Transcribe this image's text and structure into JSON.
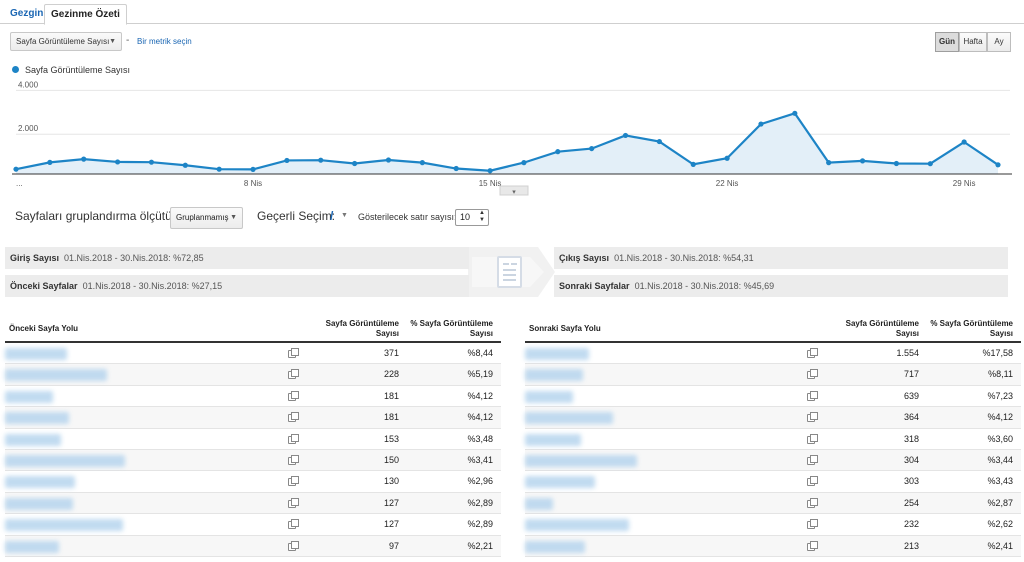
{
  "tabs": [
    {
      "label": "Gezgin"
    },
    {
      "label": "Gezinme Özeti"
    }
  ],
  "controls": {
    "metric_select": "Sayfa Görüntüleme Sayısı",
    "dash": "-",
    "add_metric": "Bir metrik seçin",
    "periods": [
      "Gün",
      "Hafta",
      "Ay"
    ],
    "selected_period": "Gün"
  },
  "legend": {
    "label": "Sayfa Görüntüleme Sayısı"
  },
  "colors": {
    "series": "#1d84c6",
    "fill": "#e3eff8",
    "link": "#1a66b3"
  },
  "chart_data": {
    "type": "area",
    "x": [
      "1 Nis",
      "2 Nis",
      "3 Nis",
      "4 Nis",
      "5 Nis",
      "6 Nis",
      "7 Nis",
      "8 Nis",
      "9 Nis",
      "10 Nis",
      "11 Nis",
      "12 Nis",
      "13 Nis",
      "14 Nis",
      "15 Nis",
      "16 Nis",
      "17 Nis",
      "18 Nis",
      "19 Nis",
      "20 Nis",
      "21 Nis",
      "22 Nis",
      "23 Nis",
      "24 Nis",
      "25 Nis",
      "26 Nis",
      "27 Nis",
      "28 Nis",
      "29 Nis",
      "30 Nis"
    ],
    "series": [
      {
        "name": "Sayfa Görüntüleme Sayısı",
        "values": [
          220,
          530,
          680,
          550,
          540,
          400,
          220,
          210,
          620,
          630,
          480,
          640,
          520,
          250,
          150,
          520,
          1020,
          1160,
          1760,
          1480,
          440,
          720,
          2280,
          2770,
          520,
          600,
          480,
          470,
          1460,
          420
        ]
      }
    ],
    "yticks": [
      "2.000",
      "4.000"
    ],
    "ylim": [
      0,
      4200
    ],
    "xtick_labels": [
      "...",
      "8 Nis",
      "15 Nis",
      "22 Nis",
      "29 Nis"
    ],
    "grid": true,
    "legend_position": "top-left"
  },
  "grouping": {
    "label": "Sayfaları gruplandırma ölçütü:",
    "select": "Gruplanmamış",
    "current_label": "Geçerli Seçim:",
    "current_value": "/",
    "rows_label": "Gösterilecek satır sayısı:",
    "rows_value": "10"
  },
  "flow": {
    "entry": {
      "label": "Giriş Sayısı",
      "detail": "01.Nis.2018 - 30.Nis.2018: %72,85"
    },
    "previous": {
      "label": "Önceki Sayfalar",
      "detail": "01.Nis.2018 - 30.Nis.2018: %27,15"
    },
    "exit": {
      "label": "Çıkış Sayısı",
      "detail": "01.Nis.2018 - 30.Nis.2018: %54,31"
    },
    "next": {
      "label": "Sonraki Sayfalar",
      "detail": "01.Nis.2018 - 30.Nis.2018: %45,69"
    }
  },
  "prev_table": {
    "headers": [
      "Önceki Sayfa Yolu",
      "Sayfa Görüntüleme Sayısı",
      "% Sayfa Görüntüleme Sayısı"
    ],
    "header_lines": {
      "pv": [
        "Sayfa Görüntüleme",
        "Sayısı"
      ],
      "pct": [
        "% Sayfa Görüntüleme",
        "Sayısı"
      ]
    },
    "rows": [
      {
        "pv": "371",
        "pct": "%8,44"
      },
      {
        "pv": "228",
        "pct": "%5,19"
      },
      {
        "pv": "181",
        "pct": "%4,12"
      },
      {
        "pv": "181",
        "pct": "%4,12"
      },
      {
        "pv": "153",
        "pct": "%3,48"
      },
      {
        "pv": "150",
        "pct": "%3,41"
      },
      {
        "pv": "130",
        "pct": "%2,96"
      },
      {
        "pv": "127",
        "pct": "%2,89"
      },
      {
        "pv": "127",
        "pct": "%2,89"
      },
      {
        "pv": "97",
        "pct": "%2,21"
      }
    ]
  },
  "next_table": {
    "headers": [
      "Sonraki Sayfa Yolu",
      "Sayfa Görüntüleme Sayısı",
      "% Sayfa Görüntüleme Sayısı"
    ],
    "header_lines": {
      "pv": [
        "Sayfa Görüntüleme",
        "Sayısı"
      ],
      "pct": [
        "% Sayfa Görüntüleme",
        "Sayısı"
      ]
    },
    "rows": [
      {
        "pv": "1.554",
        "pct": "%17,58"
      },
      {
        "pv": "717",
        "pct": "%8,11"
      },
      {
        "pv": "639",
        "pct": "%7,23"
      },
      {
        "pv": "364",
        "pct": "%4,12"
      },
      {
        "pv": "318",
        "pct": "%3,60"
      },
      {
        "pv": "304",
        "pct": "%3,44"
      },
      {
        "pv": "303",
        "pct": "%3,43"
      },
      {
        "pv": "254",
        "pct": "%2,87"
      },
      {
        "pv": "232",
        "pct": "%2,62"
      },
      {
        "pv": "213",
        "pct": "%2,41"
      }
    ]
  }
}
